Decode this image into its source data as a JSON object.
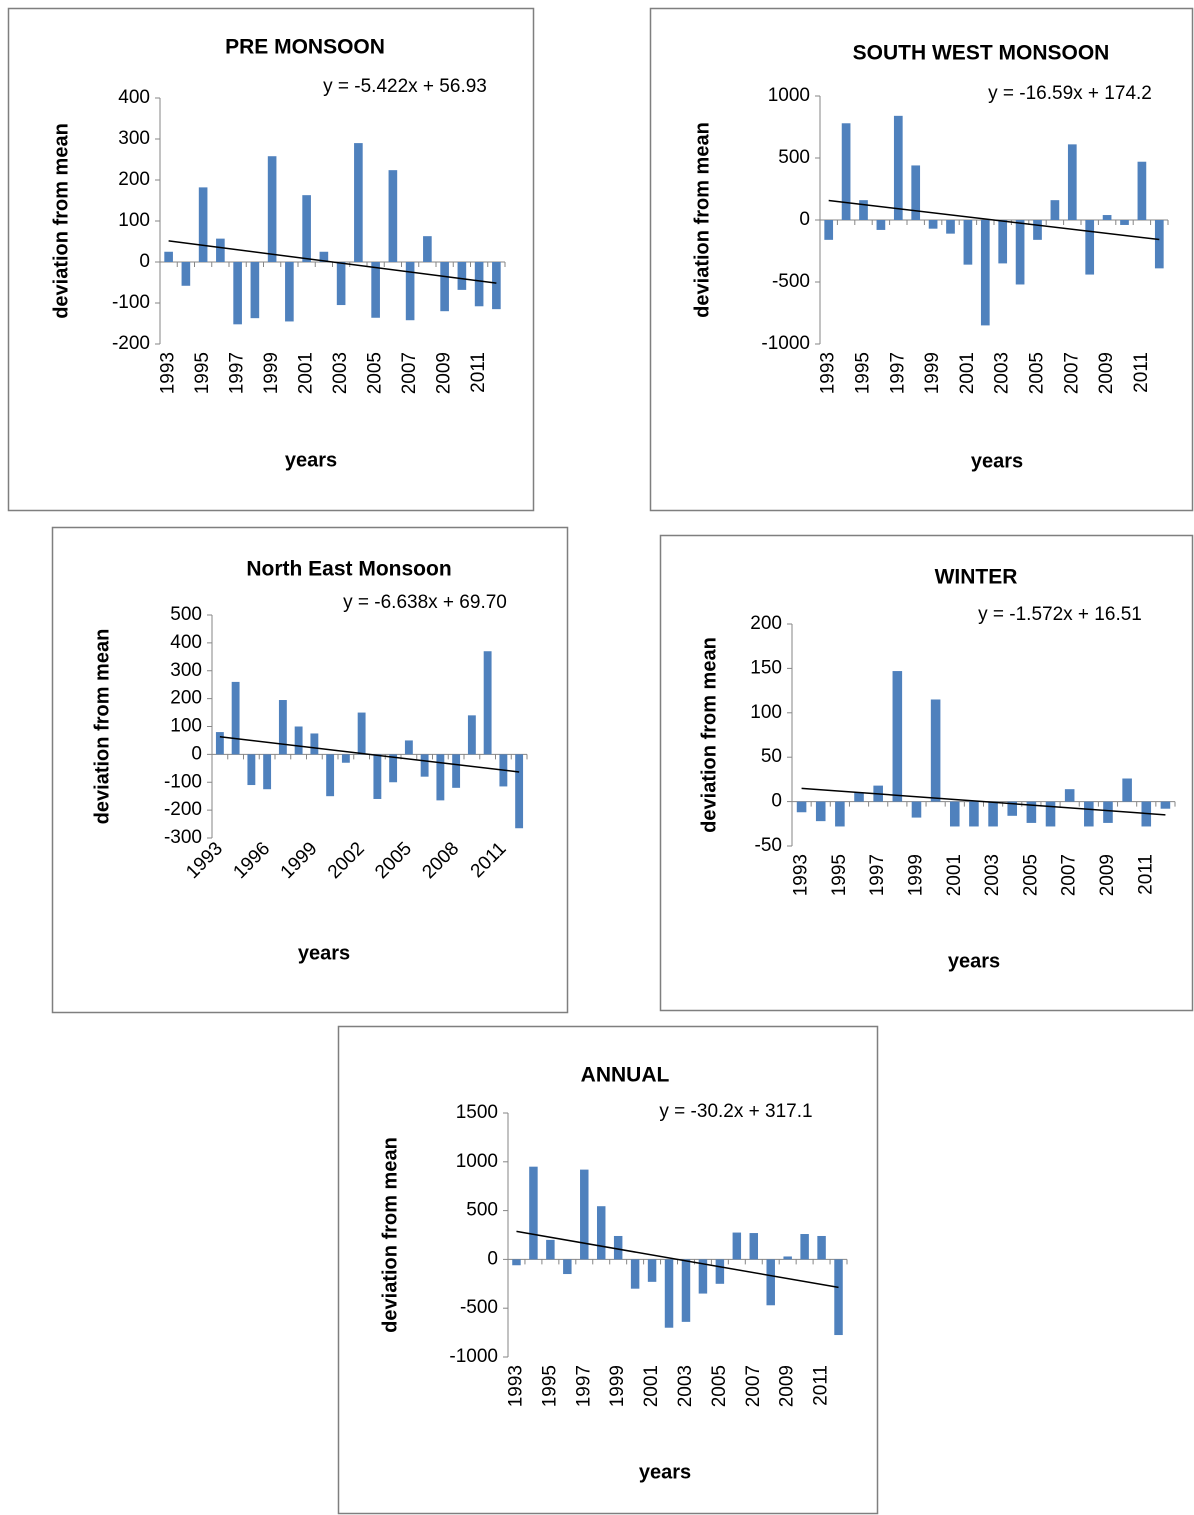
{
  "chart_data": [
    {
      "type": "bar",
      "title": "PRE MONSOON",
      "y_label": "deviation from mean",
      "x_label": "years",
      "categories": [
        "1993",
        null,
        "1995",
        null,
        "1997",
        null,
        "1999",
        null,
        "2001",
        null,
        "2003",
        null,
        "2005",
        null,
        "2007",
        null,
        "2009",
        null,
        "2011",
        null
      ],
      "values": [
        25,
        -58,
        182,
        57,
        -152,
        -137,
        258,
        -145,
        163,
        25,
        -105,
        290,
        -136,
        224,
        -142,
        63,
        -120,
        -68,
        -108,
        -115
      ],
      "color": "#4f81bd",
      "ylim": [
        -200,
        400
      ],
      "yticks": [
        -200,
        -100,
        0,
        100,
        200,
        300,
        400
      ],
      "trendline": {
        "equation": "y = -5.422x + 56.93",
        "slope": -5.422,
        "intercept": 56.93
      }
    },
    {
      "type": "bar",
      "title": "SOUTH WEST MONSOON",
      "y_label": "deviation from mean",
      "x_label": "years",
      "categories": [
        "1993",
        null,
        "1995",
        null,
        "1997",
        null,
        "1999",
        null,
        "2001",
        null,
        "2003",
        null,
        "2005",
        null,
        "2007",
        null,
        "2009",
        null,
        "2011",
        null
      ],
      "values": [
        -160,
        780,
        160,
        -80,
        840,
        440,
        -70,
        -110,
        -360,
        -850,
        -350,
        -520,
        -160,
        160,
        610,
        -440,
        40,
        -40,
        470,
        -390
      ],
      "color": "#4f81bd",
      "ylim": [
        -1000,
        1000
      ],
      "yticks": [
        -1000,
        -500,
        0,
        500,
        1000
      ],
      "trendline": {
        "equation": "y = -16.59x + 174.2",
        "slope": -16.59,
        "intercept": 174.2
      }
    },
    {
      "type": "bar",
      "title": "North East Monsoon",
      "y_label": "deviation from mean",
      "x_label": "years",
      "categories": [
        "1993",
        null,
        null,
        "1996",
        null,
        null,
        "1999",
        null,
        null,
        "2002",
        null,
        null,
        "2005",
        null,
        null,
        "2008",
        null,
        null,
        "2011",
        null
      ],
      "values": [
        80,
        260,
        -110,
        -125,
        195,
        100,
        75,
        -150,
        -30,
        150,
        -160,
        -100,
        50,
        -80,
        -165,
        -120,
        140,
        370,
        -115,
        -265
      ],
      "color": "#4f81bd",
      "ylim": [
        -300,
        500
      ],
      "yticks": [
        -300,
        -200,
        -100,
        0,
        100,
        200,
        300,
        400,
        500
      ],
      "trendline": {
        "equation": "y = -6.638x + 69.70",
        "slope": -6.638,
        "intercept": 69.7
      }
    },
    {
      "type": "bar",
      "title": "WINTER",
      "y_label": "deviation from mean",
      "x_label": "years",
      "categories": [
        "1993",
        null,
        "1995",
        null,
        "1997",
        null,
        "1999",
        null,
        "2001",
        null,
        "2003",
        null,
        "2005",
        null,
        "2007",
        null,
        "2009",
        null,
        "2011",
        null
      ],
      "values": [
        -12,
        -22,
        -28,
        10,
        18,
        147,
        -18,
        115,
        -28,
        -28,
        -28,
        -16,
        -24,
        -28,
        14,
        -28,
        -24,
        26,
        -28,
        -8
      ],
      "color": "#4f81bd",
      "ylim": [
        -50,
        200
      ],
      "yticks": [
        -50,
        0,
        50,
        100,
        150,
        200
      ],
      "trendline": {
        "equation": "y = -1.572x + 16.51",
        "slope": -1.572,
        "intercept": 16.51
      }
    },
    {
      "type": "bar",
      "title": "ANNUAL",
      "y_label": "deviation from mean",
      "x_label": "years",
      "categories": [
        "1993",
        null,
        "1995",
        null,
        "1997",
        null,
        "1999",
        null,
        "2001",
        null,
        "2003",
        null,
        "2005",
        null,
        "2007",
        null,
        "2009",
        null,
        "2011",
        null
      ],
      "values": [
        -60,
        950,
        200,
        -150,
        920,
        545,
        240,
        -300,
        -230,
        -700,
        -640,
        -350,
        -250,
        275,
        270,
        -470,
        30,
        260,
        240,
        -775
      ],
      "color": "#4f81bd",
      "ylim": [
        -1000,
        1500
      ],
      "yticks": [
        -1000,
        -500,
        0,
        500,
        1000,
        1500
      ],
      "trendline": {
        "equation": "y = -30.2x + 317.1",
        "slope": -30.2,
        "intercept": 317.1
      }
    }
  ]
}
